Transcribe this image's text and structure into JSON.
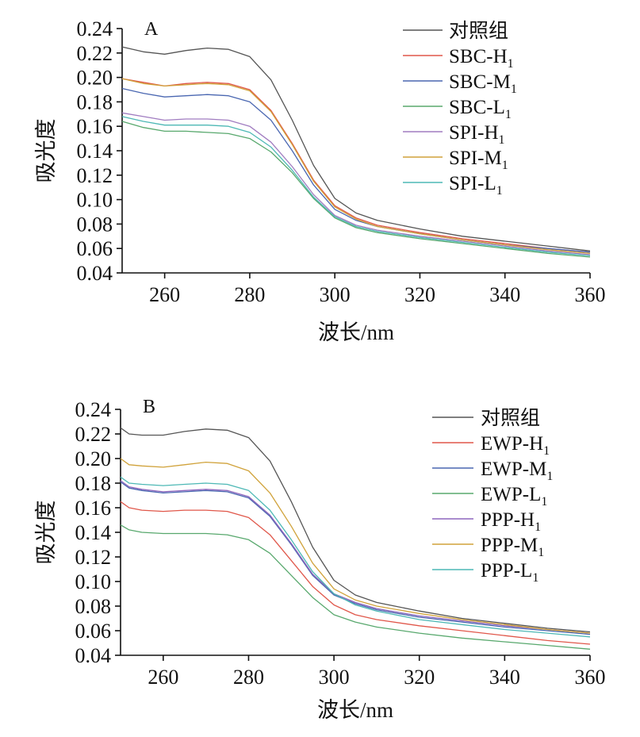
{
  "chart_data": [
    {
      "type": "line",
      "panel_label": "A",
      "xlabel": "波长/nm",
      "ylabel": "吸光度",
      "xlim": [
        250,
        360
      ],
      "ylim": [
        0.04,
        0.24
      ],
      "xticks": [
        260,
        280,
        300,
        320,
        340,
        360
      ],
      "yticks": [
        0.04,
        0.06,
        0.08,
        0.1,
        0.12,
        0.14,
        0.16,
        0.18,
        0.2,
        0.22,
        0.24
      ],
      "ytick_labels": [
        "0.04",
        "0.06",
        "0.08",
        "0.10",
        "0.12",
        "0.14",
        "0.16",
        "0.18",
        "0.20",
        "0.22",
        "0.24"
      ],
      "legend_position": "top-right",
      "grid": false,
      "x": [
        250,
        255,
        260,
        265,
        270,
        275,
        280,
        285,
        290,
        295,
        300,
        305,
        310,
        320,
        330,
        340,
        350,
        360
      ],
      "series": [
        {
          "name": "对照组",
          "base": "对照组",
          "sub": "",
          "color": "#555555",
          "values": [
            0.225,
            0.221,
            0.219,
            0.222,
            0.224,
            0.223,
            0.217,
            0.198,
            0.165,
            0.128,
            0.101,
            0.089,
            0.083,
            0.076,
            0.07,
            0.066,
            0.062,
            0.058
          ]
        },
        {
          "name": "SBC-H1",
          "base": "SBC-H",
          "sub": "1",
          "color": "#e0574a",
          "values": [
            0.199,
            0.196,
            0.193,
            0.195,
            0.196,
            0.195,
            0.19,
            0.173,
            0.146,
            0.116,
            0.095,
            0.085,
            0.079,
            0.073,
            0.068,
            0.064,
            0.06,
            0.057
          ]
        },
        {
          "name": "SBC-M1",
          "base": "SBC-M",
          "sub": "1",
          "color": "#4a67b1",
          "values": [
            0.191,
            0.187,
            0.184,
            0.185,
            0.186,
            0.185,
            0.18,
            0.165,
            0.14,
            0.112,
            0.092,
            0.083,
            0.078,
            0.072,
            0.067,
            0.063,
            0.06,
            0.057
          ]
        },
        {
          "name": "SBC-L1",
          "base": "SBC-L",
          "sub": "1",
          "color": "#58a86d",
          "values": [
            0.164,
            0.159,
            0.156,
            0.156,
            0.155,
            0.154,
            0.15,
            0.139,
            0.122,
            0.101,
            0.085,
            0.077,
            0.073,
            0.068,
            0.064,
            0.06,
            0.056,
            0.053
          ]
        },
        {
          "name": "SPI-H1",
          "base": "SPI-H",
          "sub": "1",
          "color": "#a07cc0",
          "values": [
            0.171,
            0.168,
            0.165,
            0.166,
            0.166,
            0.165,
            0.16,
            0.147,
            0.127,
            0.104,
            0.087,
            0.079,
            0.075,
            0.07,
            0.066,
            0.062,
            0.058,
            0.055
          ]
        },
        {
          "name": "SPI-M1",
          "base": "SPI-M",
          "sub": "1",
          "color": "#d0a23a",
          "values": [
            0.199,
            0.195,
            0.193,
            0.194,
            0.195,
            0.194,
            0.189,
            0.172,
            0.145,
            0.115,
            0.094,
            0.084,
            0.078,
            0.072,
            0.067,
            0.063,
            0.059,
            0.056
          ]
        },
        {
          "name": "SPI-L1",
          "base": "SPI-L",
          "sub": "1",
          "color": "#4db8b5",
          "values": [
            0.168,
            0.164,
            0.161,
            0.161,
            0.161,
            0.16,
            0.155,
            0.143,
            0.124,
            0.102,
            0.086,
            0.078,
            0.074,
            0.069,
            0.065,
            0.061,
            0.057,
            0.054
          ]
        }
      ]
    },
    {
      "type": "line",
      "panel_label": "B",
      "xlabel": "波长/nm",
      "ylabel": "吸光度",
      "xlim": [
        250,
        360
      ],
      "ylim": [
        0.04,
        0.24
      ],
      "xticks": [
        260,
        280,
        300,
        320,
        340,
        360
      ],
      "yticks": [
        0.04,
        0.06,
        0.08,
        0.1,
        0.12,
        0.14,
        0.16,
        0.18,
        0.2,
        0.22,
        0.24
      ],
      "ytick_labels": [
        "0.04",
        "0.06",
        "0.08",
        "0.10",
        "0.12",
        "0.14",
        "0.16",
        "0.18",
        "0.20",
        "0.22",
        "0.24"
      ],
      "legend_position": "top-right",
      "grid": false,
      "x": [
        250,
        252,
        255,
        260,
        265,
        270,
        275,
        280,
        285,
        290,
        295,
        300,
        305,
        310,
        320,
        330,
        340,
        350,
        360
      ],
      "series": [
        {
          "name": "对照组",
          "base": "对照组",
          "sub": "",
          "color": "#555555",
          "values": [
            0.225,
            0.22,
            0.219,
            0.219,
            0.222,
            0.224,
            0.223,
            0.217,
            0.198,
            0.165,
            0.128,
            0.101,
            0.089,
            0.083,
            0.076,
            0.07,
            0.066,
            0.062,
            0.059
          ]
        },
        {
          "name": "EWP-H1",
          "base": "EWP-H",
          "sub": "1",
          "color": "#e0574a",
          "values": [
            0.165,
            0.16,
            0.158,
            0.157,
            0.158,
            0.158,
            0.157,
            0.152,
            0.138,
            0.117,
            0.096,
            0.081,
            0.073,
            0.069,
            0.064,
            0.06,
            0.056,
            0.052,
            0.049
          ]
        },
        {
          "name": "EWP-M1",
          "base": "EWP-M",
          "sub": "1",
          "color": "#4a67b1",
          "values": [
            0.181,
            0.176,
            0.174,
            0.172,
            0.173,
            0.174,
            0.173,
            0.168,
            0.153,
            0.13,
            0.105,
            0.089,
            0.082,
            0.077,
            0.071,
            0.067,
            0.063,
            0.06,
            0.057
          ]
        },
        {
          "name": "EWP-L1",
          "base": "EWP-L",
          "sub": "1",
          "color": "#58a86d",
          "values": [
            0.146,
            0.142,
            0.14,
            0.139,
            0.139,
            0.139,
            0.138,
            0.134,
            0.123,
            0.105,
            0.087,
            0.073,
            0.067,
            0.063,
            0.058,
            0.054,
            0.051,
            0.048,
            0.045
          ]
        },
        {
          "name": "PPP-H1",
          "base": "PPP-H",
          "sub": "1",
          "color": "#8e66bd",
          "values": [
            0.182,
            0.177,
            0.175,
            0.173,
            0.174,
            0.175,
            0.174,
            0.169,
            0.154,
            0.131,
            0.106,
            0.09,
            0.083,
            0.078,
            0.072,
            0.068,
            0.064,
            0.061,
            0.058
          ]
        },
        {
          "name": "PPP-M1",
          "base": "PPP-M",
          "sub": "1",
          "color": "#d0a23a",
          "values": [
            0.2,
            0.195,
            0.194,
            0.193,
            0.195,
            0.197,
            0.196,
            0.19,
            0.172,
            0.145,
            0.115,
            0.094,
            0.085,
            0.08,
            0.074,
            0.069,
            0.065,
            0.061,
            0.058
          ]
        },
        {
          "name": "PPP-L1",
          "base": "PPP-L",
          "sub": "1",
          "color": "#4db8b5",
          "values": [
            0.185,
            0.18,
            0.179,
            0.178,
            0.179,
            0.18,
            0.179,
            0.174,
            0.158,
            0.134,
            0.108,
            0.09,
            0.081,
            0.076,
            0.069,
            0.065,
            0.061,
            0.058,
            0.055
          ]
        }
      ]
    }
  ]
}
